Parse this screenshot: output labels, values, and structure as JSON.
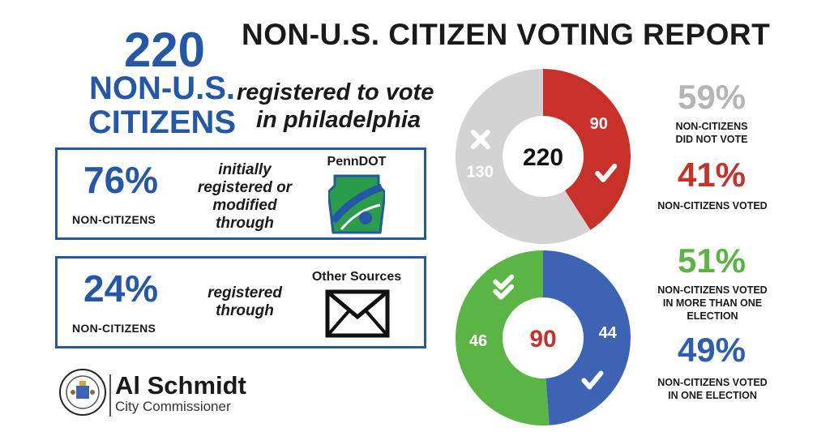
{
  "title": "NON-U.S. CITIZEN VOTING REPORT",
  "headline": {
    "count": "220",
    "line1": "NON-U.S.",
    "line2": "CITIZENS",
    "reg_line1": "registered to vote",
    "reg_line2": "in philadelphia"
  },
  "penndot_box": {
    "percent": "76%",
    "label": "NON-CITIZENS",
    "desc1": "initially",
    "desc2": "registered or",
    "desc3": "modified",
    "desc4": "through",
    "source": "PennDOT",
    "icon": "penndot-logo-icon"
  },
  "other_box": {
    "percent": "24%",
    "label": "NON-CITIZENS",
    "desc1": "registered",
    "desc2": "through",
    "source": "Other Sources",
    "icon": "envelope-icon"
  },
  "stats_top": {
    "did_not_vote_pct": "59%",
    "did_not_vote_l1": "NON-CITIZENS",
    "did_not_vote_l2": "DID NOT VOTE",
    "voted_pct": "41%",
    "voted_cap": "NON-CITIZENS VOTED"
  },
  "stats_bottom": {
    "multi_pct": "51%",
    "multi_l1": "NON-CITIZENS VOTED",
    "multi_l2": "IN MORE THAN ONE",
    "multi_l3": "ELECTION",
    "one_pct": "49%",
    "one_l1": "NON-CITIZENS VOTED",
    "one_l2": "IN ONE ELECTION"
  },
  "footer": {
    "name": "Al Schmidt",
    "role": "City Commissioner",
    "seal_icon": "city-seal-icon"
  },
  "colors": {
    "blue": "#2457a6",
    "red": "#c8312a",
    "grey": "#d3d3d3",
    "green": "#5bb544",
    "stat_grey": "#b5b5b5",
    "stat_red": "#c8312a",
    "stat_green": "#5bb544",
    "stat_blue": "#2d5fb0"
  },
  "chart_data": [
    {
      "type": "pie",
      "center_label": "220",
      "slices": [
        {
          "value": 90,
          "label": "90",
          "color": "#c8312a",
          "marker": "check-icon"
        },
        {
          "value": 130,
          "label": "130",
          "color": "#d3d3d3",
          "marker": "cross-icon"
        }
      ]
    },
    {
      "type": "pie",
      "center_label": "90",
      "slices": [
        {
          "value": 44,
          "label": "44",
          "color": "#3d63b4",
          "marker": "check-icon"
        },
        {
          "value": 46,
          "label": "46",
          "color": "#5bb544",
          "marker": "double-check-icon"
        }
      ]
    }
  ]
}
